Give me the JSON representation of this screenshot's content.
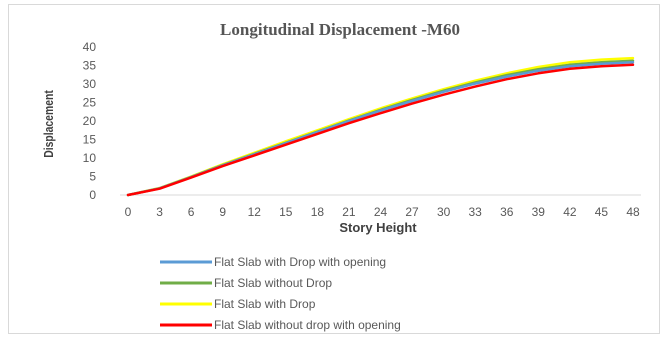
{
  "chart_data": {
    "type": "line",
    "title": "Longitudinal Displacement -M60",
    "xlabel": "Story Height",
    "ylabel": "Displacement",
    "ylim": [
      0,
      40
    ],
    "yticks": [
      0,
      5,
      10,
      15,
      20,
      25,
      30,
      35,
      40
    ],
    "x": [
      0,
      3,
      6,
      9,
      12,
      15,
      18,
      21,
      24,
      27,
      30,
      33,
      36,
      39,
      42,
      45,
      48
    ],
    "grid": false,
    "legend_position": "bottom",
    "series": [
      {
        "name": "Flat Slab with Drop with opening",
        "color": "#5b9bd5",
        "values": [
          0,
          1.8,
          4.8,
          8.0,
          11.0,
          14.0,
          17.0,
          20.0,
          22.8,
          25.4,
          27.9,
          30.1,
          32.0,
          33.6,
          34.8,
          35.5,
          35.9
        ]
      },
      {
        "name": "Flat Slab without Drop",
        "color": "#70ad47",
        "values": [
          0,
          1.8,
          4.9,
          8.1,
          11.1,
          14.1,
          17.1,
          20.1,
          23.0,
          25.7,
          28.2,
          30.4,
          32.4,
          34.0,
          35.2,
          35.9,
          36.3
        ]
      },
      {
        "name": "Flat Slab with Drop",
        "color": "#ffff00",
        "values": [
          0,
          1.9,
          5.0,
          8.3,
          11.4,
          14.5,
          17.5,
          20.5,
          23.4,
          26.1,
          28.6,
          30.9,
          32.9,
          34.6,
          35.9,
          36.6,
          37.0
        ]
      },
      {
        "name": "Flat Slab without drop with opening",
        "color": "#ff0000",
        "values": [
          0,
          1.7,
          4.7,
          7.8,
          10.7,
          13.6,
          16.5,
          19.4,
          22.1,
          24.7,
          27.1,
          29.3,
          31.3,
          32.9,
          34.1,
          34.8,
          35.2
        ]
      }
    ]
  }
}
